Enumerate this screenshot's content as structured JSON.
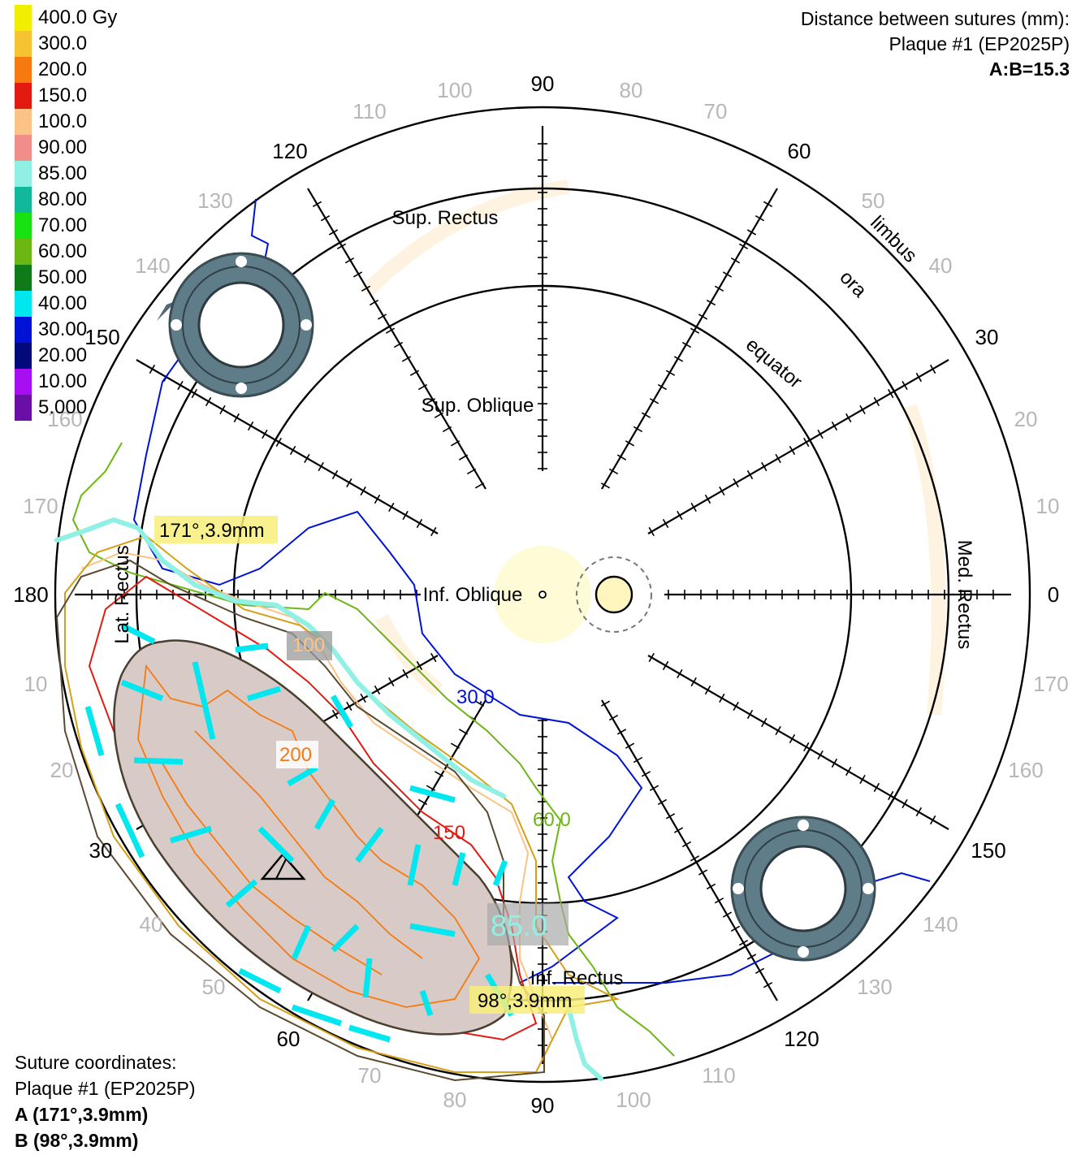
{
  "legend": [
    {
      "label": "400.0 Gy",
      "color": "#f2ee00"
    },
    {
      "label": "300.0",
      "color": "#f6c333"
    },
    {
      "label": "200.0",
      "color": "#f77a10"
    },
    {
      "label": "150.0",
      "color": "#e31a12"
    },
    {
      "label": "100.0",
      "color": "#fcc387"
    },
    {
      "label": "90.00",
      "color": "#f08e8a"
    },
    {
      "label": "85.00",
      "color": "#8ff0e3"
    },
    {
      "label": "80.00",
      "color": "#12b89a"
    },
    {
      "label": "70.00",
      "color": "#18e212"
    },
    {
      "label": "60.00",
      "color": "#6cb713"
    },
    {
      "label": "50.00",
      "color": "#0f7a18"
    },
    {
      "label": "40.00",
      "color": "#00e7f0"
    },
    {
      "label": "30.00",
      "color": "#0013d4"
    },
    {
      "label": "20.00",
      "color": "#000a7a"
    },
    {
      "label": "10.00",
      "color": "#a70ff2"
    },
    {
      "label": "5.000",
      "color": "#6a0ea6"
    }
  ],
  "header": {
    "line1": "Distance between sutures (mm):",
    "line2": "Plaque #1 (EP2025P)",
    "line3": "A:B=15.3"
  },
  "sutures": {
    "title": "Suture coordinates:",
    "plaque": "Plaque #1 (EP2025P)",
    "a": "A (171°,3.9mm)",
    "b": "B (98°,3.9mm)"
  },
  "rings": {
    "limbus": "limbus",
    "ora": "ora",
    "equator": "equator"
  },
  "muscles": {
    "sup_rectus": "Sup. Rectus",
    "sup_oblique": "Sup. Oblique",
    "inf_oblique": "Inf. Oblique",
    "lat_rectus": "Lat. Rectus",
    "med_rectus": "Med. Rectus",
    "inf_rectus": "Inf. Rectus"
  },
  "axis_labels": {
    "top": "90",
    "bottom": "90",
    "left": "180",
    "right": "0"
  },
  "outer_angles_top": [
    "100",
    "110",
    "120",
    "130",
    "140",
    "150",
    "160",
    "170",
    "80",
    "70",
    "60",
    "50",
    "40",
    "30",
    "20",
    "10"
  ],
  "outer_angles_bottom": [
    "10",
    "20",
    "30",
    "40",
    "50",
    "60",
    "70",
    "80",
    "100",
    "110",
    "120",
    "130",
    "140",
    "150",
    "160",
    "170"
  ],
  "suture_callouts": {
    "a": "171°,3.9mm",
    "b": "98°,3.9mm"
  },
  "isodose_labels": {
    "d30": "30.0",
    "d60": "60.0",
    "d150": "150",
    "d200": "200",
    "d100": "100",
    "d85": "85.0"
  }
}
